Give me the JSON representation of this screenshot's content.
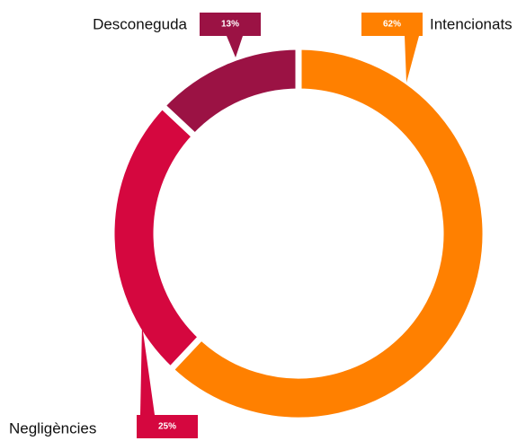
{
  "chart_data": {
    "type": "donut",
    "categories": [
      "Intencionats",
      "Negligències",
      "Desconeguda"
    ],
    "values": [
      62,
      25,
      13
    ],
    "value_labels": [
      "62%",
      "25%",
      "13%"
    ],
    "colors": [
      "#ff8000",
      "#d5073f",
      "#9b1244"
    ]
  }
}
